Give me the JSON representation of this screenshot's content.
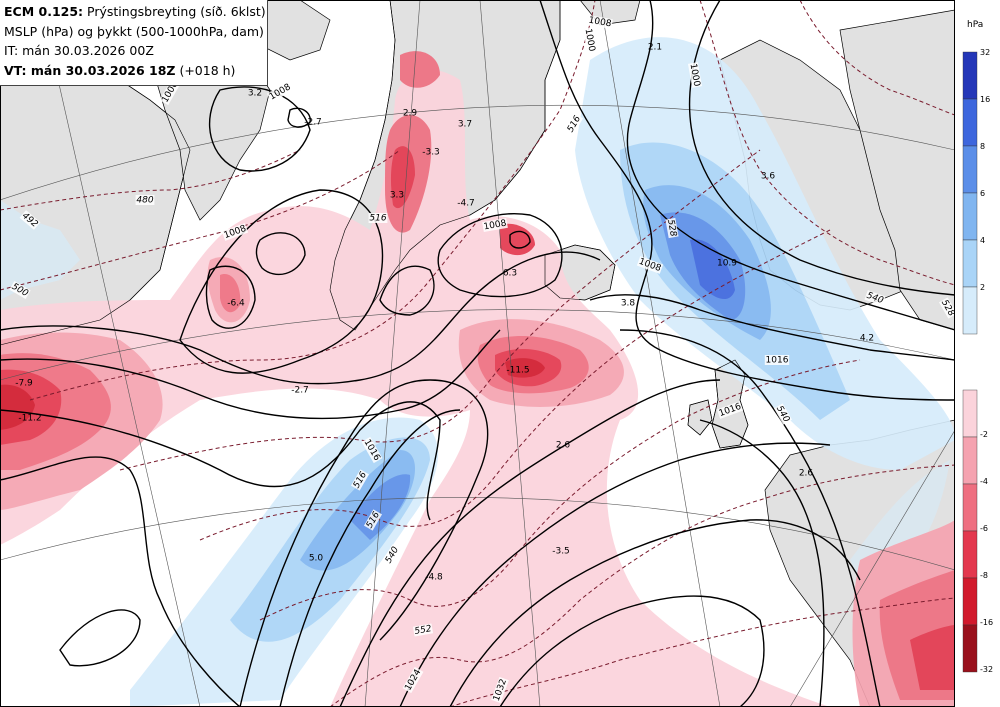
{
  "title": {
    "model": "ECM 0.125:",
    "subtitle": "Prýstingsbreyting (síð. 6klst)",
    "line2": "MSLP (hPa) og þykkt (500-1000hPa, dam)",
    "line3": "IT: mán 30.03.2026 00Z",
    "line4_bold": "VT: mán 30.03.2026 18Z",
    "line4_rest": "(+018 h)"
  },
  "legend": {
    "unit": "hPa",
    "rise_colors": [
      "#d6ecfb",
      "#a9d4f7",
      "#80b5f0",
      "#5b8ee8",
      "#3d66dd",
      "#2437b8"
    ],
    "rise_ticks": [
      "32",
      "16",
      "8",
      "6",
      "4",
      "2"
    ],
    "fall_colors": [
      "#fbd3db",
      "#f5a3b0",
      "#ee6f80",
      "#e3384e",
      "#d11a2c",
      "#99111c"
    ],
    "fall_ticks": [
      "-2",
      "-4",
      "-6",
      "-8",
      "-16",
      "-32"
    ]
  },
  "colors": {
    "land": "#e1e1e1",
    "sea": "#ffffff",
    "isobar": "#000000",
    "thickness": "#7a1c2e"
  },
  "map": {
    "isobar_labels": [
      {
        "t": "1008"
      },
      {
        "t": "1000"
      },
      {
        "t": "1008"
      },
      {
        "t": "1000"
      },
      {
        "t": "1008"
      },
      {
        "t": "1008"
      },
      {
        "t": "1016"
      },
      {
        "t": "1016"
      },
      {
        "t": "1024"
      },
      {
        "t": "1032"
      },
      {
        "t": "1008"
      },
      {
        "t": "1000"
      },
      {
        "t": "1016"
      }
    ],
    "thickness_labels": [
      {
        "t": "492"
      },
      {
        "t": "500"
      },
      {
        "t": "516"
      },
      {
        "t": "516"
      },
      {
        "t": "528"
      },
      {
        "t": "516"
      },
      {
        "t": "540"
      },
      {
        "t": "540"
      },
      {
        "t": "528"
      },
      {
        "t": "552"
      },
      {
        "t": "540"
      },
      {
        "t": "516"
      },
      {
        "t": "480"
      }
    ],
    "value_labels": [
      {
        "t": "3.2"
      },
      {
        "t": "-2.7"
      },
      {
        "t": "2.9"
      },
      {
        "t": "3.7"
      },
      {
        "t": "-3.3"
      },
      {
        "t": "3.3"
      },
      {
        "t": "-4.7"
      },
      {
        "t": "6.3"
      },
      {
        "t": "2.1"
      },
      {
        "t": "3.6"
      },
      {
        "t": "10.9"
      },
      {
        "t": "3.8"
      },
      {
        "t": "-6.4"
      },
      {
        "t": "-7.9"
      },
      {
        "t": "-11.2"
      },
      {
        "t": "-2.7"
      },
      {
        "t": "-11.5"
      },
      {
        "t": "2.6"
      },
      {
        "t": "-3.5"
      },
      {
        "t": "2.6"
      },
      {
        "t": "5.0"
      },
      {
        "t": "-4.8"
      },
      {
        "t": "4.2"
      }
    ]
  }
}
